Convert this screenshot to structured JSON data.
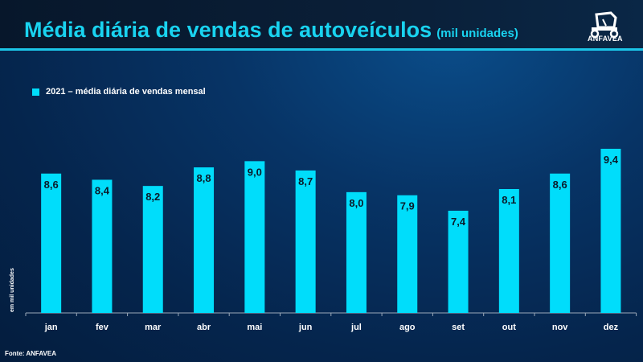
{
  "header": {
    "title": "Média diária de vendas de autoveículos",
    "subtitle": "(mil unidades)",
    "logo_text": "ANFAVEA"
  },
  "footer": {
    "source": "Fonte: ANFAVEA"
  },
  "colors": {
    "bar": "#00ddfb",
    "title": "#19d3f0",
    "background": "#05254d"
  },
  "chart_data": {
    "type": "bar",
    "title": "Média diária de vendas de autoveículos",
    "ylabel": "em mil unidades",
    "xlabel": "",
    "legend": "top-left",
    "grid": false,
    "ylim": [
      4.1,
      9.6
    ],
    "categories": [
      "jan",
      "fev",
      "mar",
      "abr",
      "mai",
      "jun",
      "jul",
      "ago",
      "set",
      "out",
      "nov",
      "dez"
    ],
    "series": [
      {
        "name": "2021 – média diária de vendas mensal",
        "values": [
          8.6,
          8.4,
          8.2,
          8.8,
          9.0,
          8.7,
          8.0,
          7.9,
          7.4,
          8.1,
          8.6,
          9.4
        ],
        "labels": [
          "8,6",
          "8,4",
          "8,2",
          "8,8",
          "9,0",
          "8,7",
          "8,0",
          "7,9",
          "7,4",
          "8,1",
          "8,6",
          "9,4"
        ]
      }
    ]
  }
}
